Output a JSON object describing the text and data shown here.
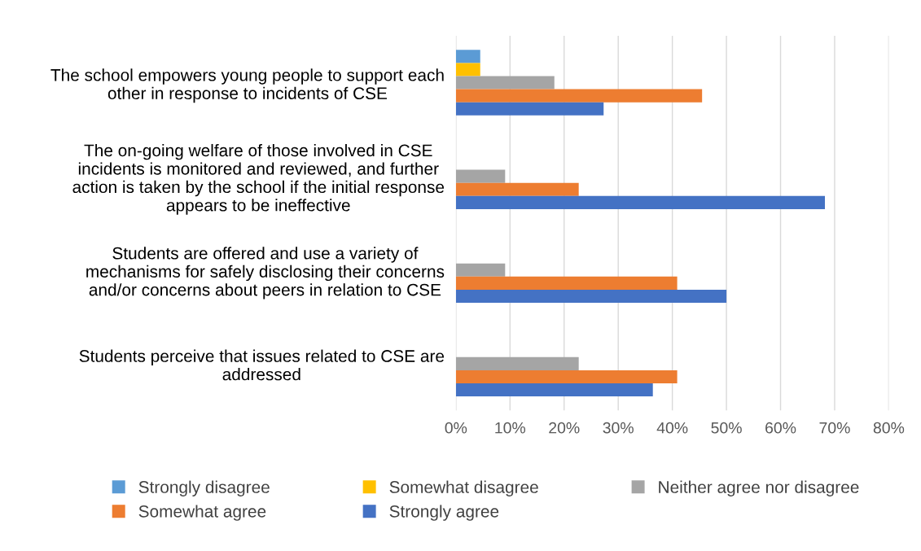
{
  "chart_data": {
    "type": "bar",
    "orientation": "horizontal",
    "categories": [
      "The school empowers young people to support each\nother in response to incidents of CSE",
      "The on-going welfare of those involved in CSE\nincidents is monitored and reviewed, and further\naction is taken by the school if the initial response\nappears to be ineffective",
      "Students are offered and use a variety of\nmechanisms for safely disclosing their concerns\nand/or concerns about peers in relation to CSE",
      "Students perceive that issues related to CSE are\naddressed"
    ],
    "series": [
      {
        "name": "Strongly disagree",
        "color": "#5b9bd5",
        "values": [
          4.5,
          0,
          0,
          0
        ]
      },
      {
        "name": "Somewhat disagree",
        "color": "#ffc000",
        "values": [
          4.5,
          0,
          0,
          0
        ]
      },
      {
        "name": "Neither agree nor disagree",
        "color": "#a5a5a5",
        "values": [
          18.2,
          9.1,
          9.1,
          22.7
        ]
      },
      {
        "name": "Somewhat agree",
        "color": "#ed7d31",
        "values": [
          45.5,
          22.7,
          40.9,
          40.9
        ]
      },
      {
        "name": "Strongly agree",
        "color": "#4472c4",
        "values": [
          27.3,
          68.2,
          50.0,
          36.4
        ]
      }
    ],
    "xlim": [
      0,
      80
    ],
    "xticks": [
      {
        "value": 0,
        "label": "0%"
      },
      {
        "value": 10,
        "label": "10%"
      },
      {
        "value": 20,
        "label": "20%"
      },
      {
        "value": 30,
        "label": "30%"
      },
      {
        "value": 40,
        "label": "40%"
      },
      {
        "value": 50,
        "label": "50%"
      },
      {
        "value": 60,
        "label": "60%"
      },
      {
        "value": 70,
        "label": "70%"
      },
      {
        "value": 80,
        "label": "80%"
      }
    ],
    "grid": "x",
    "legend": "bottom"
  }
}
